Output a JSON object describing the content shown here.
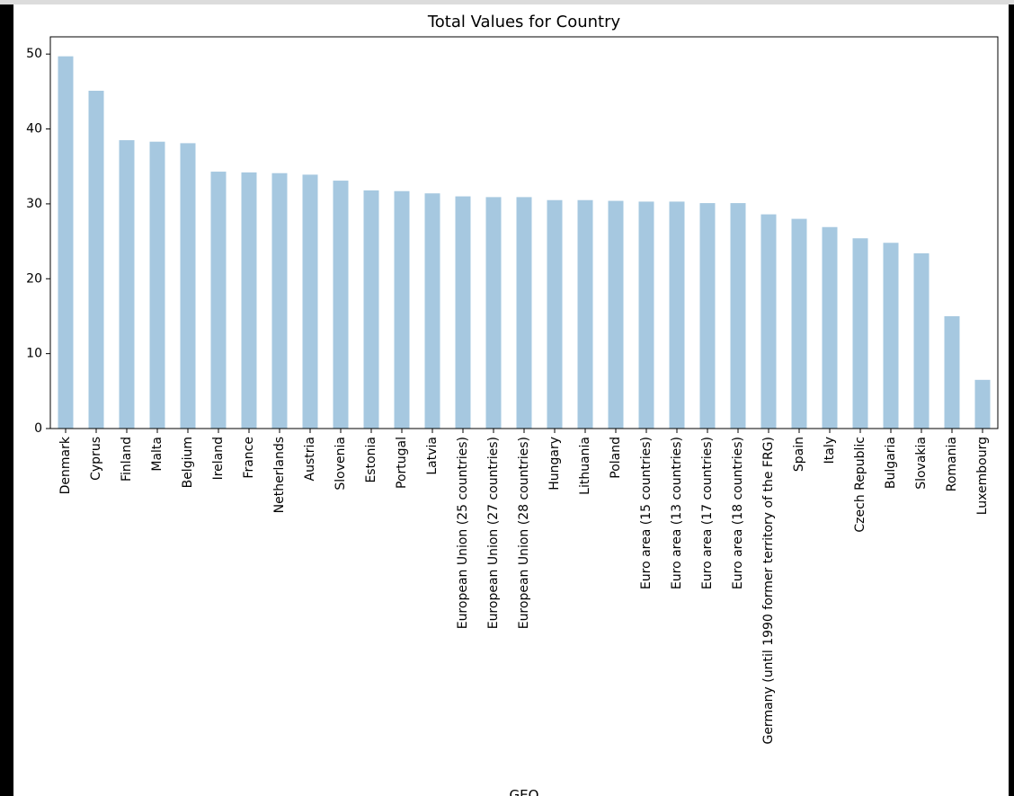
{
  "chart_data": {
    "type": "bar",
    "title": "Total Values for Country",
    "xlabel": "GEO",
    "ylabel": "",
    "ylim": [
      0,
      52.3
    ],
    "yticks": [
      0,
      10,
      20,
      30,
      40,
      50
    ],
    "bar_color": "#a6c8e0",
    "grid": false,
    "legend": "none",
    "categories": [
      "Denmark",
      "Cyprus",
      "Finland",
      "Malta",
      "Belgium",
      "Ireland",
      "France",
      "Netherlands",
      "Austria",
      "Slovenia",
      "Estonia",
      "Portugal",
      "Latvia",
      "European Union (25 countries)",
      "European Union (27 countries)",
      "European Union (28 countries)",
      "Hungary",
      "Lithuania",
      "Poland",
      "Euro area (15 countries)",
      "Euro area (13 countries)",
      "Euro area (17 countries)",
      "Euro area (18 countries)",
      "Germany (until 1990 former territory of the FRG)",
      "Spain",
      "Italy",
      "Czech Republic",
      "Bulgaria",
      "Slovakia",
      "Romania",
      "Luxembourg"
    ],
    "values": [
      49.7,
      45.1,
      38.5,
      38.3,
      38.1,
      34.3,
      34.2,
      34.1,
      33.9,
      33.1,
      31.8,
      31.7,
      31.4,
      31.0,
      30.9,
      30.9,
      30.5,
      30.5,
      30.4,
      30.3,
      30.3,
      30.1,
      30.1,
      28.6,
      28.0,
      26.9,
      25.4,
      24.8,
      23.4,
      15.0,
      6.5
    ]
  }
}
